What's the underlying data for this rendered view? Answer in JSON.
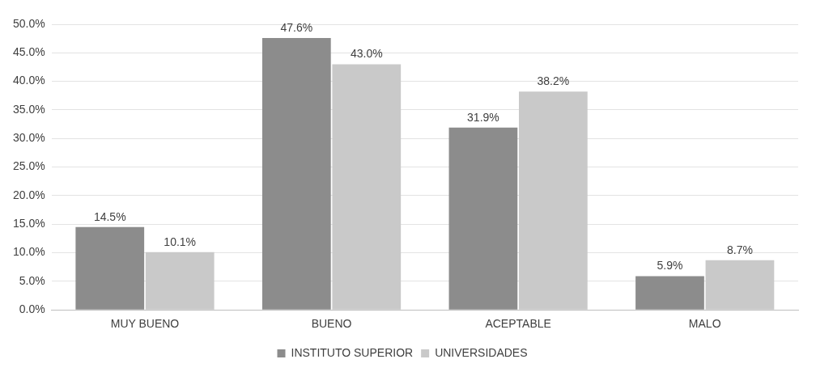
{
  "chart_data": {
    "type": "bar",
    "categories": [
      "MUY BUENO",
      "BUENO",
      "ACEPTABLE",
      "MALO"
    ],
    "series": [
      {
        "name": "INSTITUTO SUPERIOR",
        "color": "#8c8c8c",
        "values": [
          14.5,
          47.6,
          31.9,
          5.9
        ],
        "value_labels": [
          "14.5%",
          "47.6%",
          "31.9%",
          "5.9%"
        ]
      },
      {
        "name": "UNIVERSIDADES",
        "color": "#c9c9c9",
        "values": [
          10.1,
          43.0,
          38.2,
          8.7
        ],
        "value_labels": [
          "10.1%",
          "43.0%",
          "38.2%",
          "8.7%"
        ]
      }
    ],
    "ylim": [
      0,
      50
    ],
    "yticks": [
      {
        "value": 0,
        "label": "0.0%"
      },
      {
        "value": 5,
        "label": "5.0%"
      },
      {
        "value": 10,
        "label": "10.0%"
      },
      {
        "value": 15,
        "label": "15.0%"
      },
      {
        "value": 20,
        "label": "20.0%"
      },
      {
        "value": 25,
        "label": "25.0%"
      },
      {
        "value": 30,
        "label": "30.0%"
      },
      {
        "value": 35,
        "label": "35.0%"
      },
      {
        "value": 40,
        "label": "40.0%"
      },
      {
        "value": 45,
        "label": "45.0%"
      },
      {
        "value": 50,
        "label": "50.0%"
      }
    ],
    "grid": "y",
    "legend": "bottom"
  }
}
